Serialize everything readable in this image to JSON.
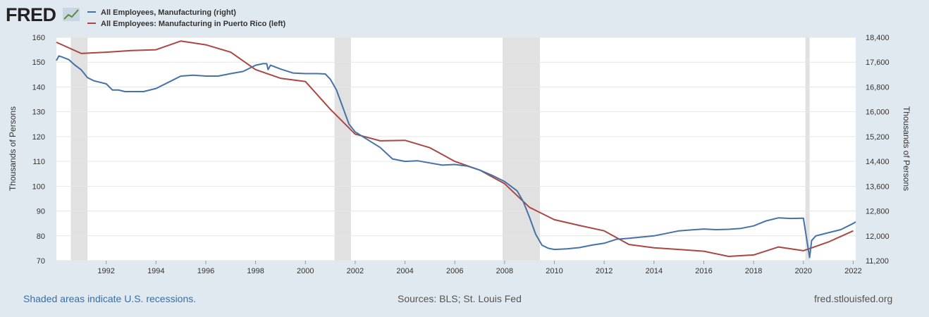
{
  "logo": {
    "text": "FRED",
    "icon": "trend-line-icon"
  },
  "legend": [
    {
      "label": "All Employees, Manufacturing (right)",
      "color": "#4572a7"
    },
    {
      "label": "All Employees: Manufacturing in Puerto Rico (left)",
      "color": "#aa4643"
    }
  ],
  "footer": {
    "note": "Shaded areas indicate U.S. recessions.",
    "source": "Sources: BLS; St. Louis Fed",
    "site": "fred.stlouisfed.org"
  },
  "chart_data": {
    "type": "line",
    "xlim": [
      1990.0,
      2022.1
    ],
    "x_ticks": [
      "1992",
      "1994",
      "1996",
      "1998",
      "2000",
      "2002",
      "2004",
      "2006",
      "2008",
      "2010",
      "2012",
      "2014",
      "2016",
      "2018",
      "2020",
      "2022"
    ],
    "x_tick_values": [
      1992,
      1994,
      1996,
      1998,
      2000,
      2002,
      2004,
      2006,
      2008,
      2010,
      2012,
      2014,
      2016,
      2018,
      2020,
      2022
    ],
    "left_axis": {
      "label": "Thousands of Persons",
      "range": [
        70,
        160
      ],
      "ticks": [
        "70",
        "80",
        "90",
        "100",
        "110",
        "120",
        "130",
        "140",
        "150",
        "160"
      ]
    },
    "right_axis": {
      "label": "Thousands of Persons",
      "range": [
        11200,
        18400
      ],
      "ticks": [
        "11,200",
        "12,000",
        "12,800",
        "13,600",
        "14,400",
        "15,200",
        "16,000",
        "16,800",
        "17,600",
        "18,400"
      ]
    },
    "grid": true,
    "recessions": [
      [
        1990.58,
        1991.25
      ],
      [
        2001.17,
        2001.83
      ],
      [
        2007.92,
        2009.42
      ],
      [
        2020.08,
        2020.25
      ]
    ],
    "series": [
      {
        "name": "All Employees: Manufacturing in Puerto Rico (left)",
        "axis": "left",
        "color": "#aa4643",
        "x": [
          1990.0,
          1991.0,
          1992.0,
          1993.0,
          1994.0,
          1995.0,
          1996.0,
          1997.0,
          1998.0,
          1999.0,
          2000.0,
          2001.0,
          2002.0,
          2003.0,
          2004.0,
          2005.0,
          2006.0,
          2007.0,
          2008.0,
          2009.0,
          2010.0,
          2011.0,
          2012.0,
          2013.0,
          2014.0,
          2015.0,
          2016.0,
          2017.0,
          2018.0,
          2019.0,
          2020.0,
          2021.0,
          2022.0
        ],
        "values": [
          158.0,
          153.5,
          154.0,
          154.7,
          155.0,
          158.5,
          157.0,
          154.0,
          147.0,
          143.5,
          142.2,
          131.0,
          121.0,
          118.3,
          118.5,
          115.5,
          110.0,
          106.5,
          101.0,
          91.5,
          86.5,
          84.2,
          82.0,
          76.5,
          75.2,
          74.5,
          73.8,
          71.7,
          72.3,
          75.5,
          74.0,
          77.5,
          82.0
        ]
      },
      {
        "name": "All Employees, Manufacturing (right)",
        "axis": "right",
        "color": "#4572a7",
        "x": [
          1990.0,
          1990.1,
          1990.25,
          1990.5,
          1990.75,
          1991.0,
          1991.25,
          1991.5,
          1991.75,
          1992.0,
          1992.25,
          1992.5,
          1992.75,
          1993.0,
          1993.5,
          1994.0,
          1994.5,
          1995.0,
          1995.5,
          1996.0,
          1996.5,
          1997.0,
          1997.5,
          1998.0,
          1998.3,
          1998.45,
          1998.5,
          1998.6,
          1999.0,
          1999.5,
          2000.0,
          2000.5,
          2000.8,
          2001.0,
          2001.25,
          2001.5,
          2001.75,
          2002.0,
          2002.5,
          2003.0,
          2003.5,
          2004.0,
          2004.5,
          2005.0,
          2005.5,
          2006.0,
          2006.5,
          2007.0,
          2007.5,
          2008.0,
          2008.5,
          2008.75,
          2009.0,
          2009.25,
          2009.5,
          2009.75,
          2010.0,
          2010.5,
          2011.0,
          2011.5,
          2012.0,
          2012.5,
          2013.0,
          2013.5,
          2014.0,
          2014.5,
          2015.0,
          2015.5,
          2016.0,
          2016.5,
          2017.0,
          2017.5,
          2018.0,
          2018.5,
          2019.0,
          2019.5,
          2020.0,
          2020.25,
          2020.33,
          2020.5,
          2020.75,
          2021.0,
          2021.5,
          2022.0,
          2022.1
        ],
        "values": [
          17650,
          17800,
          17760,
          17680,
          17500,
          17350,
          17100,
          17000,
          16950,
          16900,
          16700,
          16700,
          16650,
          16650,
          16650,
          16750,
          16950,
          17150,
          17180,
          17150,
          17150,
          17230,
          17300,
          17500,
          17550,
          17550,
          17360,
          17500,
          17380,
          17250,
          17230,
          17230,
          17220,
          17050,
          16700,
          16150,
          15600,
          15350,
          15100,
          14850,
          14480,
          14400,
          14420,
          14350,
          14280,
          14300,
          14250,
          14120,
          13950,
          13750,
          13450,
          13100,
          12600,
          12050,
          11700,
          11600,
          11560,
          11580,
          11620,
          11700,
          11760,
          11890,
          11920,
          11960,
          12000,
          12080,
          12160,
          12190,
          12220,
          12200,
          12210,
          12240,
          12320,
          12480,
          12580,
          12560,
          12570,
          11300,
          11850,
          12000,
          12050,
          12100,
          12200,
          12400,
          12450
        ]
      }
    ]
  }
}
